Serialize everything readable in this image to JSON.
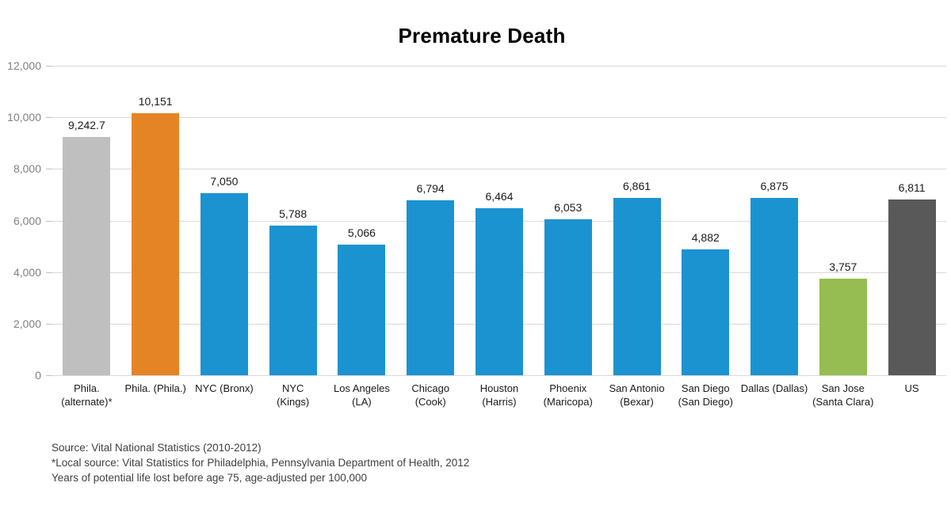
{
  "title": "Premature Death",
  "colors": {
    "blue": "#1b93d1",
    "orange": "#e58425",
    "light_gray": "#bfbfbf",
    "green": "#95bd51",
    "dark_gray": "#595959",
    "gridline": "#d9d9d9",
    "axis_text": "#808080",
    "label_text": "#1a1a1a",
    "footnote_text": "#404040"
  },
  "chart_data": {
    "type": "bar",
    "title": "Premature Death",
    "xlabel": "",
    "ylabel": "",
    "ylim": [
      0,
      12000
    ],
    "ytick_interval": 2000,
    "ytick_labels": [
      "12,000",
      "10,000",
      "8,000",
      "6,000",
      "4,000",
      "2,000",
      "0"
    ],
    "grid": true,
    "legend": "none",
    "categories": [
      "Phila.\n(alternate)*",
      "Phila. (Phila.)",
      "NYC (Bronx)",
      "NYC\n(Kings)",
      "Los Angeles\n(LA)",
      "Chicago\n(Cook)",
      "Houston\n(Harris)",
      "Phoenix\n(Maricopa)",
      "San Antonio\n(Bexar)",
      "San Diego\n(San Diego)",
      "Dallas (Dallas)",
      "San Jose\n(Santa Clara)",
      "US"
    ],
    "values": [
      9242.7,
      10151,
      7050,
      5788,
      5066,
      6794,
      6464,
      6053,
      6861,
      4882,
      6875,
      3757,
      6811
    ],
    "value_labels": [
      "9,242.7",
      "10,151",
      "7,050",
      "5,788",
      "5,066",
      "6,794",
      "6,464",
      "6,053",
      "6,861",
      "4,882",
      "6,875",
      "3,757",
      "6,811"
    ],
    "bar_color_keys": [
      "light_gray",
      "orange",
      "blue",
      "blue",
      "blue",
      "blue",
      "blue",
      "blue",
      "blue",
      "blue",
      "blue",
      "green",
      "dark_gray"
    ]
  },
  "footnotes": [
    "Source: Vital National Statistics (2010-2012)",
    "*Local source: Vital Statistics for Philadelphia, Pennsylvania Department of Health, 2012",
    "Years of potential life lost before age 75, age-adjusted per 100,000"
  ]
}
